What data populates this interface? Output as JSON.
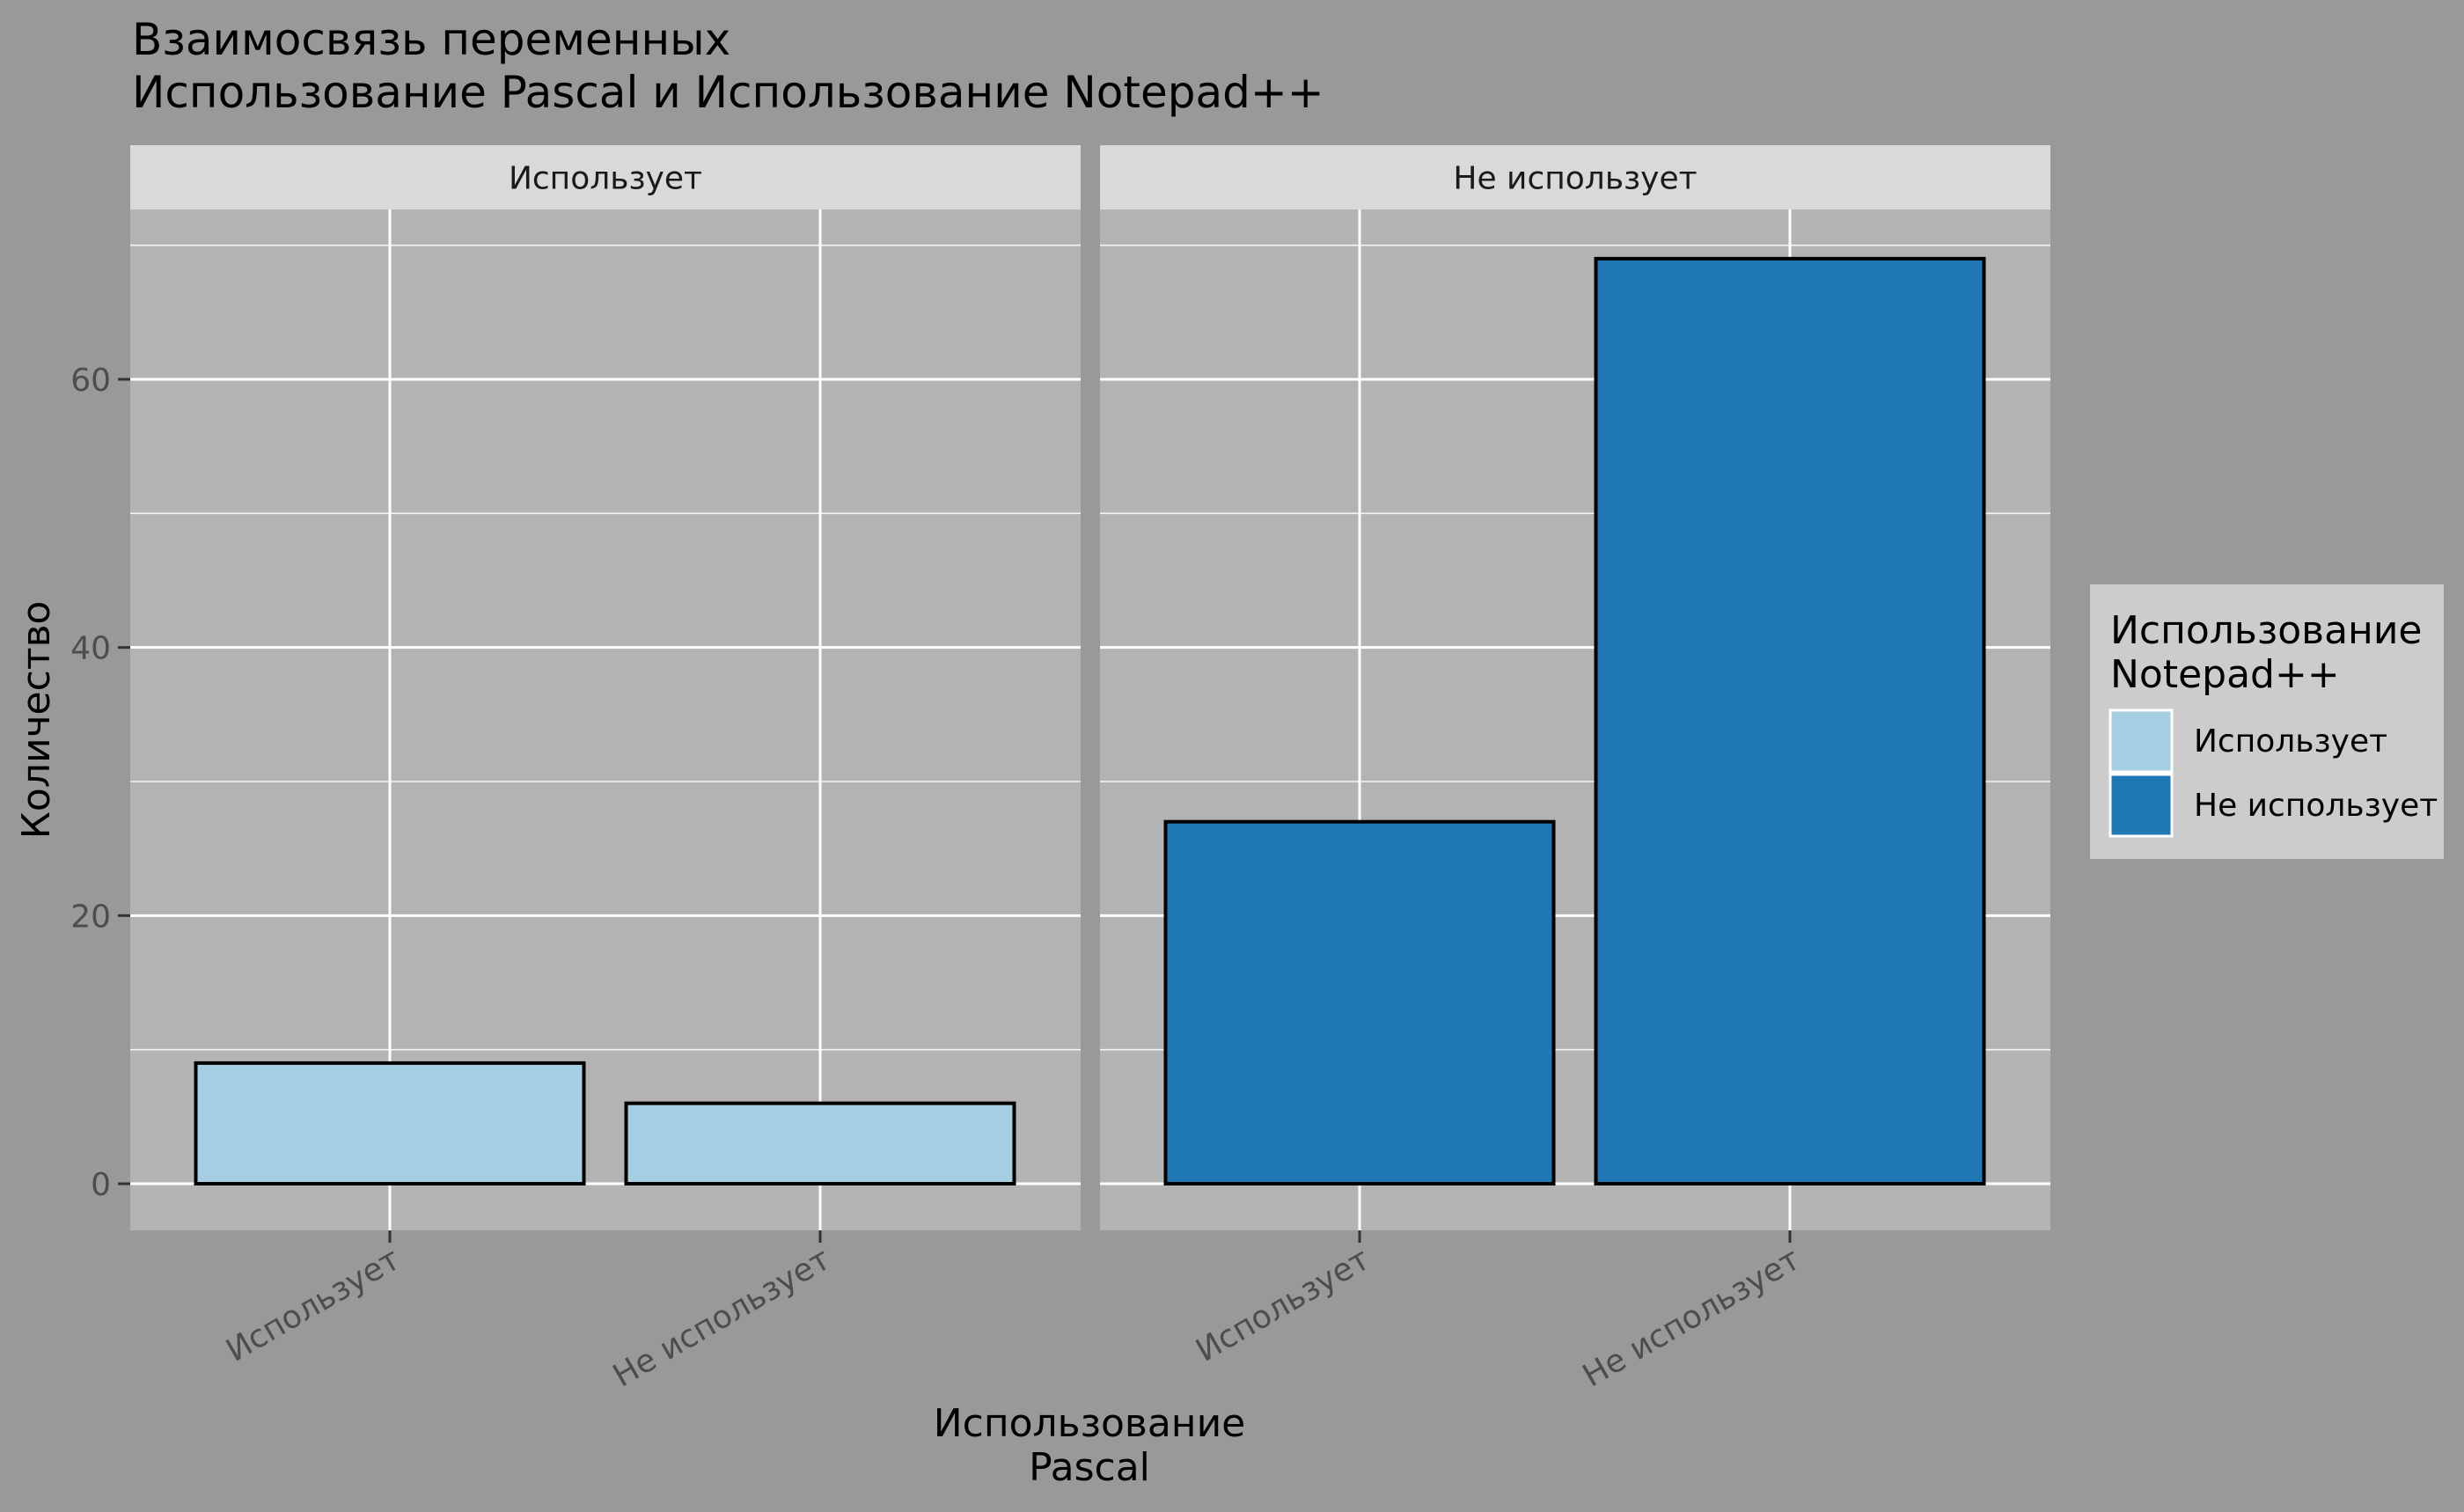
{
  "chart_data": {
    "type": "bar",
    "title": "Взаимосвязь переменных\n Использование Pascal и Использование Notepad++",
    "xlabel": "Использование\nPascal",
    "ylabel": "Количество",
    "ylim": [
      0,
      72
    ],
    "yticks": [
      0,
      20,
      40,
      60
    ],
    "grid": true,
    "facets": [
      "Использует",
      "Не использует"
    ],
    "categories": [
      "Использует",
      "Не использует"
    ],
    "legend": {
      "title": "Использование\nNotepad++",
      "position": "right",
      "entries": [
        {
          "label": "Использует",
          "color": "#a6cee3"
        },
        {
          "label": "Не использует",
          "color": "#1f78b4"
        }
      ]
    },
    "panels": [
      {
        "facet": "Использует",
        "series": "Использует",
        "values": [
          9,
          6
        ]
      },
      {
        "facet": "Не использует",
        "series": "Не использует",
        "values": [
          27,
          69
        ]
      }
    ]
  },
  "colors": {
    "background": "#999999",
    "panel": "#b3b3b3",
    "strip": "#d9d9d9",
    "legend_bg": "#cccccc",
    "grid": "#ffffff",
    "bar_outline": "#000000"
  }
}
